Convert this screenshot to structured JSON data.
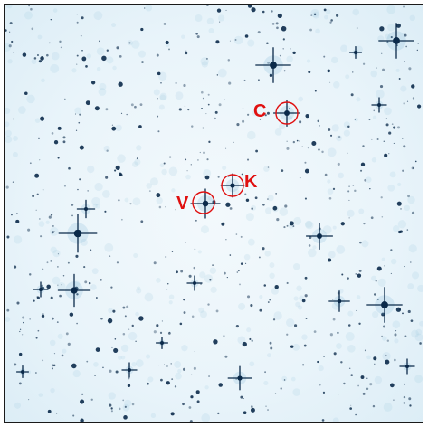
{
  "image": {
    "description_colors": {
      "background": "#eaf5fb",
      "star": "#0b2a4a",
      "marker": "#e01010"
    }
  },
  "markers": [
    {
      "id": "C",
      "label": "C"
    },
    {
      "id": "K",
      "label": "K"
    },
    {
      "id": "V",
      "label": "V"
    }
  ]
}
